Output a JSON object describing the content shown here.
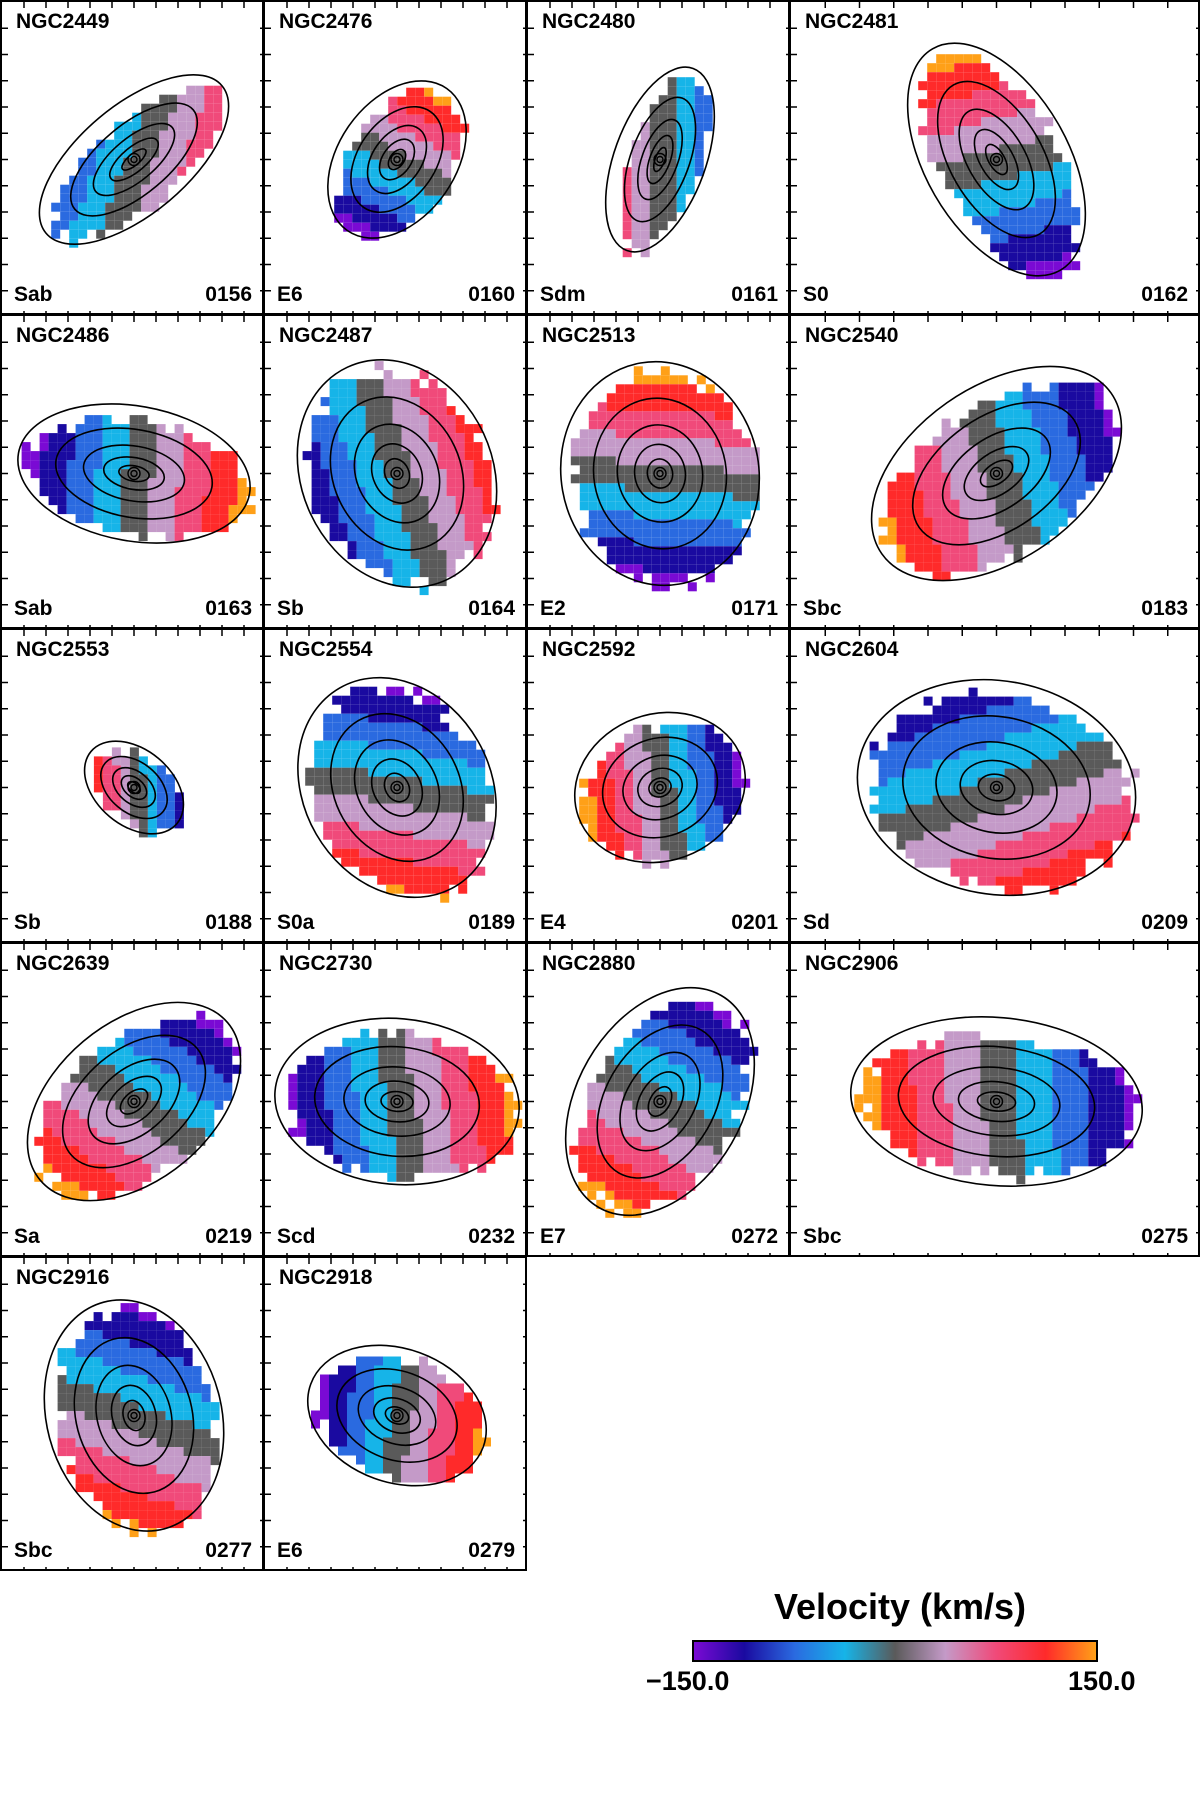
{
  "panels": [
    {
      "name": "NGC2449",
      "type": "Sab",
      "id": "0156",
      "pa": -40,
      "ar": 0.38,
      "rel": 0.45,
      "data_dir": 20
    },
    {
      "name": "NGC2476",
      "type": "E6",
      "id": "0160",
      "pa": -55,
      "ar": 0.62,
      "rel": 0.34,
      "data_dir": -60
    },
    {
      "name": "NGC2480",
      "type": "Sdm",
      "id": "0161",
      "pa": -70,
      "ar": 0.38,
      "rel": 0.38,
      "data_dir": 180
    },
    {
      "name": "NGC2481",
      "type": "S0",
      "id": "0162",
      "pa": 60,
      "ar": 0.48,
      "rel": 0.42,
      "data_dir": -105
    },
    {
      "name": "NGC2486",
      "type": "Sab",
      "id": "0163",
      "pa": 10,
      "ar": 0.5,
      "rel": 0.46,
      "data_dir": 5
    },
    {
      "name": "NGC2487",
      "type": "Sb",
      "id": "0164",
      "pa": 65,
      "ar": 0.78,
      "rel": 0.46,
      "data_dir": -20
    },
    {
      "name": "NGC2513",
      "type": "E2",
      "id": "0171",
      "pa": 80,
      "ar": 0.86,
      "rel": 0.44,
      "data_dir": -85
    },
    {
      "name": "NGC2540",
      "type": "Sbc",
      "id": "0183",
      "pa": -35,
      "ar": 0.55,
      "rel": 0.46,
      "data_dir": 160
    },
    {
      "name": "NGC2553",
      "type": "Sb",
      "id": "0188",
      "pa": 40,
      "ar": 0.62,
      "rel": 0.22,
      "data_dir": 175
    },
    {
      "name": "NGC2554",
      "type": "S0a",
      "id": "0189",
      "pa": 60,
      "ar": 0.78,
      "rel": 0.45,
      "data_dir": 100
    },
    {
      "name": "NGC2592",
      "type": "E4",
      "id": "0201",
      "pa": -20,
      "ar": 0.82,
      "rel": 0.34,
      "data_dir": 170
    },
    {
      "name": "NGC2604",
      "type": "Sd",
      "id": "0209",
      "pa": 10,
      "ar": 0.72,
      "rel": 0.46,
      "data_dir": 70
    },
    {
      "name": "NGC2639",
      "type": "Sa",
      "id": "0219",
      "pa": -40,
      "ar": 0.58,
      "rel": 0.48,
      "data_dir": 125
    },
    {
      "name": "NGC2730",
      "type": "Scd",
      "id": "0232",
      "pa": 5,
      "ar": 0.62,
      "rel": 0.48,
      "data_dir": -10
    },
    {
      "name": "NGC2880",
      "type": "E7",
      "id": "0272",
      "pa": -60,
      "ar": 0.62,
      "rel": 0.48,
      "data_dir": 120
    },
    {
      "name": "NGC2906",
      "type": "Sbc",
      "id": "0275",
      "pa": 5,
      "ar": 0.5,
      "rel": 0.48,
      "data_dir": 175
    },
    {
      "name": "NGC2916",
      "type": "Sbc",
      "id": "0277",
      "pa": 75,
      "ar": 0.7,
      "rel": 0.46,
      "data_dir": 110
    },
    {
      "name": "NGC2918",
      "type": "E6",
      "id": "0279",
      "pa": 20,
      "ar": 0.68,
      "rel": 0.36,
      "data_dir": 10
    }
  ],
  "colorbar": {
    "title": "Velocity (km/s)",
    "min_label": "−150.0",
    "max_label": "150.0",
    "min": -150.0,
    "max": 150.0,
    "colors": [
      "#7a0ad4",
      "#1a0aa0",
      "#2a6ae0",
      "#16b4e8",
      "#5a5a5a",
      "#c49ac8",
      "#f04a7a",
      "#ff2a2a",
      "#ffa018"
    ]
  }
}
